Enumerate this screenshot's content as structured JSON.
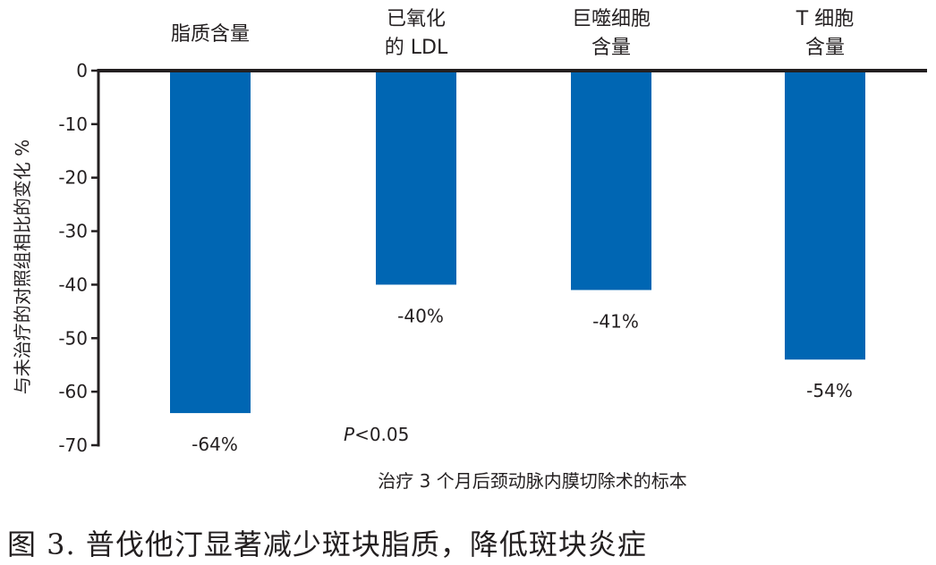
{
  "chart_data": {
    "type": "bar",
    "categories": [
      [
        "脂质含量"
      ],
      [
        "已氧化",
        "的 LDL"
      ],
      [
        "巨噬细胞",
        "含量"
      ],
      [
        "T 细胞",
        "含量"
      ]
    ],
    "values": [
      -64,
      -40,
      -41,
      -54
    ],
    "value_labels": [
      "-64%",
      "-40%",
      "-41%",
      "-54%"
    ],
    "ylabel": "与未治疗的对照组相比的变化 %",
    "xlabel": "治疗 3 个月后颈动脉内膜切除术的标本",
    "ylim": [
      -70,
      0
    ],
    "yticks": [
      0,
      -10,
      -20,
      -30,
      -40,
      -50,
      -60,
      -70
    ],
    "annotation": {
      "italic": "P",
      "rest": "<0.05"
    },
    "grid": false,
    "bar_color": "#0066b3"
  },
  "caption": "图 3. 普伐他汀显著减少斑块脂质，降低斑块炎症"
}
